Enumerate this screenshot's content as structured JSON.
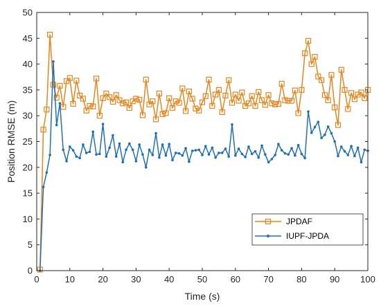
{
  "chart_data": {
    "type": "line",
    "title": "",
    "xlabel": "Time (s)",
    "ylabel": "Position RMSE (m)",
    "xlim": [
      0,
      100
    ],
    "ylim": [
      0,
      50
    ],
    "xticks": [
      0,
      10,
      20,
      30,
      40,
      50,
      60,
      70,
      80,
      90,
      100
    ],
    "yticks": [
      0,
      5,
      10,
      15,
      20,
      25,
      30,
      35,
      40,
      45,
      50
    ],
    "grid": false,
    "legend_position": "bottom-right",
    "x": [
      1,
      2,
      3,
      4,
      5,
      6,
      7,
      8,
      9,
      10,
      11,
      12,
      13,
      14,
      15,
      16,
      17,
      18,
      19,
      20,
      21,
      22,
      23,
      24,
      25,
      26,
      27,
      28,
      29,
      30,
      31,
      32,
      33,
      34,
      35,
      36,
      37,
      38,
      39,
      40,
      41,
      42,
      43,
      44,
      45,
      46,
      47,
      48,
      49,
      50,
      51,
      52,
      53,
      54,
      55,
      56,
      57,
      58,
      59,
      60,
      61,
      62,
      63,
      64,
      65,
      66,
      67,
      68,
      69,
      70,
      71,
      72,
      73,
      74,
      75,
      76,
      77,
      78,
      79,
      80,
      81,
      82,
      83,
      84,
      85,
      86,
      87,
      88,
      89,
      90,
      91,
      92,
      93,
      94,
      95,
      96,
      97,
      98,
      99,
      100
    ],
    "series": [
      {
        "name": "JPDAF",
        "color": "#E8841B",
        "marker": "square",
        "values": [
          0.2,
          27.3,
          31.2,
          45.7,
          36.0,
          33.5,
          35.8,
          31.7,
          36.7,
          37.3,
          32.3,
          36.8,
          33.9,
          33.3,
          31.0,
          31.9,
          31.8,
          37.2,
          30.0,
          33.4,
          34.3,
          33.6,
          32.7,
          34.0,
          33.0,
          32.4,
          32.6,
          31.5,
          32.8,
          33.3,
          33.1,
          30.1,
          37.0,
          32.2,
          32.8,
          29.3,
          34.3,
          30.3,
          30.5,
          33.4,
          31.5,
          32.8,
          32.5,
          35.3,
          30.9,
          34.7,
          33.3,
          31.4,
          31.0,
          32.6,
          33.8,
          37.0,
          31.9,
          34.1,
          35.0,
          30.7,
          33.9,
          36.9,
          32.5,
          34.1,
          32.9,
          34.5,
          31.9,
          32.4,
          33.8,
          31.9,
          34.6,
          33.0,
          32.1,
          34.0,
          32.4,
          32.2,
          32.3,
          36.2,
          33.0,
          32.9,
          32.9,
          34.9,
          30.5,
          35.0,
          42.1,
          44.5,
          40.0,
          41.4,
          37.6,
          36.9,
          34.0,
          33.0,
          37.9,
          31.6,
          28.2,
          38.9,
          35.0,
          31.3,
          34.4,
          33.2,
          34.1,
          34.5,
          33.4,
          35.0
        ]
      },
      {
        "name": "IUPF-JPDA",
        "color": "#1F6FB4",
        "marker": "dot",
        "values": [
          0.0,
          16.2,
          19.0,
          22.4,
          40.5,
          28.2,
          32.4,
          23.4,
          21.2,
          24.0,
          23.3,
          22.1,
          21.8,
          24.4,
          22.8,
          23.0,
          26.9,
          22.5,
          22.6,
          28.4,
          22.1,
          23.8,
          26.2,
          22.1,
          24.6,
          21.0,
          23.4,
          24.6,
          23.4,
          21.2,
          24.4,
          22.5,
          20.0,
          23.4,
          22.4,
          26.6,
          21.9,
          24.4,
          22.3,
          24.5,
          21.4,
          22.8,
          22.7,
          22.3,
          23.7,
          21.1,
          23.2,
          23.3,
          23.4,
          22.4,
          24.1,
          22.5,
          23.8,
          21.9,
          22.8,
          22.8,
          23.6,
          22.1,
          28.3,
          22.3,
          23.6,
          22.6,
          22.0,
          24.0,
          22.6,
          23.1,
          21.9,
          24.2,
          22.5,
          21.0,
          21.6,
          22.4,
          24.5,
          23.3,
          22.7,
          22.5,
          23.7,
          22.3,
          24.3,
          22.6,
          21.8,
          30.8,
          26.7,
          27.8,
          28.8,
          25.7,
          26.3,
          27.9,
          26.6,
          25.0,
          22.2,
          24.0,
          23.1,
          22.4,
          24.1,
          22.2,
          23.8,
          21.0,
          23.4,
          23.2
        ]
      }
    ]
  }
}
